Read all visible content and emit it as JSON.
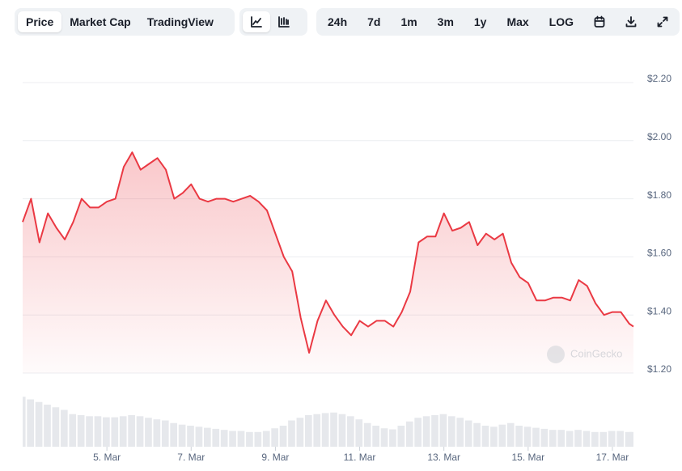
{
  "toolbar": {
    "views": [
      "Price",
      "Market Cap",
      "TradingView"
    ],
    "ranges": [
      "24h",
      "7d",
      "1m",
      "3m",
      "1y",
      "Max",
      "LOG"
    ]
  },
  "chart_data": {
    "type": "line",
    "color": "#ea3943",
    "watermark": "CoinGecko",
    "x": [
      3,
      3.2,
      3.4,
      3.6,
      3.8,
      4,
      4.2,
      4.4,
      4.6,
      4.8,
      5,
      5.2,
      5.4,
      5.6,
      5.8,
      6,
      6.2,
      6.4,
      6.6,
      6.8,
      7,
      7.2,
      7.4,
      7.6,
      7.8,
      8,
      8.2,
      8.4,
      8.6,
      8.8,
      9,
      9.2,
      9.4,
      9.6,
      9.8,
      10,
      10.2,
      10.4,
      10.6,
      10.8,
      11,
      11.2,
      11.4,
      11.6,
      11.8,
      12,
      12.2,
      12.4,
      12.6,
      12.8,
      13,
      13.2,
      13.4,
      13.6,
      13.8,
      14,
      14.2,
      14.4,
      14.6,
      14.8,
      15,
      15.2,
      15.4,
      15.6,
      15.8,
      16,
      16.2,
      16.4,
      16.6,
      16.8,
      17,
      17.2,
      17.4,
      17.5
    ],
    "values": [
      1.72,
      1.8,
      1.65,
      1.75,
      1.7,
      1.66,
      1.72,
      1.8,
      1.77,
      1.77,
      1.79,
      1.8,
      1.91,
      1.96,
      1.9,
      1.92,
      1.94,
      1.9,
      1.8,
      1.82,
      1.85,
      1.8,
      1.79,
      1.8,
      1.8,
      1.79,
      1.8,
      1.81,
      1.79,
      1.76,
      1.68,
      1.6,
      1.55,
      1.39,
      1.27,
      1.38,
      1.45,
      1.4,
      1.36,
      1.33,
      1.38,
      1.36,
      1.38,
      1.38,
      1.36,
      1.41,
      1.48,
      1.65,
      1.67,
      1.67,
      1.75,
      1.69,
      1.7,
      1.72,
      1.64,
      1.68,
      1.66,
      1.68,
      1.58,
      1.53,
      1.51,
      1.45,
      1.45,
      1.46,
      1.46,
      1.45,
      1.52,
      1.5,
      1.44,
      1.4,
      1.41,
      1.41,
      1.37,
      1.36
    ],
    "volume": {
      "color": "#e6e8ec",
      "ylim": [
        0,
        100
      ],
      "values": [
        95,
        90,
        85,
        80,
        75,
        70,
        62,
        60,
        58,
        58,
        56,
        56,
        58,
        60,
        58,
        55,
        52,
        50,
        45,
        42,
        40,
        38,
        36,
        34,
        32,
        30,
        30,
        28,
        28,
        30,
        35,
        40,
        50,
        55,
        60,
        62,
        64,
        65,
        62,
        58,
        52,
        45,
        40,
        35,
        33,
        40,
        48,
        55,
        58,
        60,
        62,
        58,
        55,
        50,
        45,
        40,
        38,
        42,
        45,
        40,
        38,
        36,
        34,
        32,
        32,
        30,
        32,
        30,
        28,
        28,
        30,
        30,
        28,
        28
      ]
    },
    "xlim": [
      3,
      17.5
    ],
    "xticks": [
      {
        "value": 5,
        "label": "5. Mar"
      },
      {
        "value": 7,
        "label": "7. Mar"
      },
      {
        "value": 9,
        "label": "9. Mar"
      },
      {
        "value": 11,
        "label": "11. Mar"
      },
      {
        "value": 13,
        "label": "13. Mar"
      },
      {
        "value": 15,
        "label": "15. Mar"
      },
      {
        "value": 17,
        "label": "17. Mar"
      }
    ],
    "ylim": [
      1.2,
      2.2
    ],
    "yticks": [
      {
        "value": 1.2,
        "label": "$1.20"
      },
      {
        "value": 1.4,
        "label": "$1.40"
      },
      {
        "value": 1.6,
        "label": "$1.60"
      },
      {
        "value": 1.8,
        "label": "$1.80"
      },
      {
        "value": 2.0,
        "label": "$2.00"
      },
      {
        "value": 2.2,
        "label": "$2.20"
      }
    ],
    "grid": true
  }
}
